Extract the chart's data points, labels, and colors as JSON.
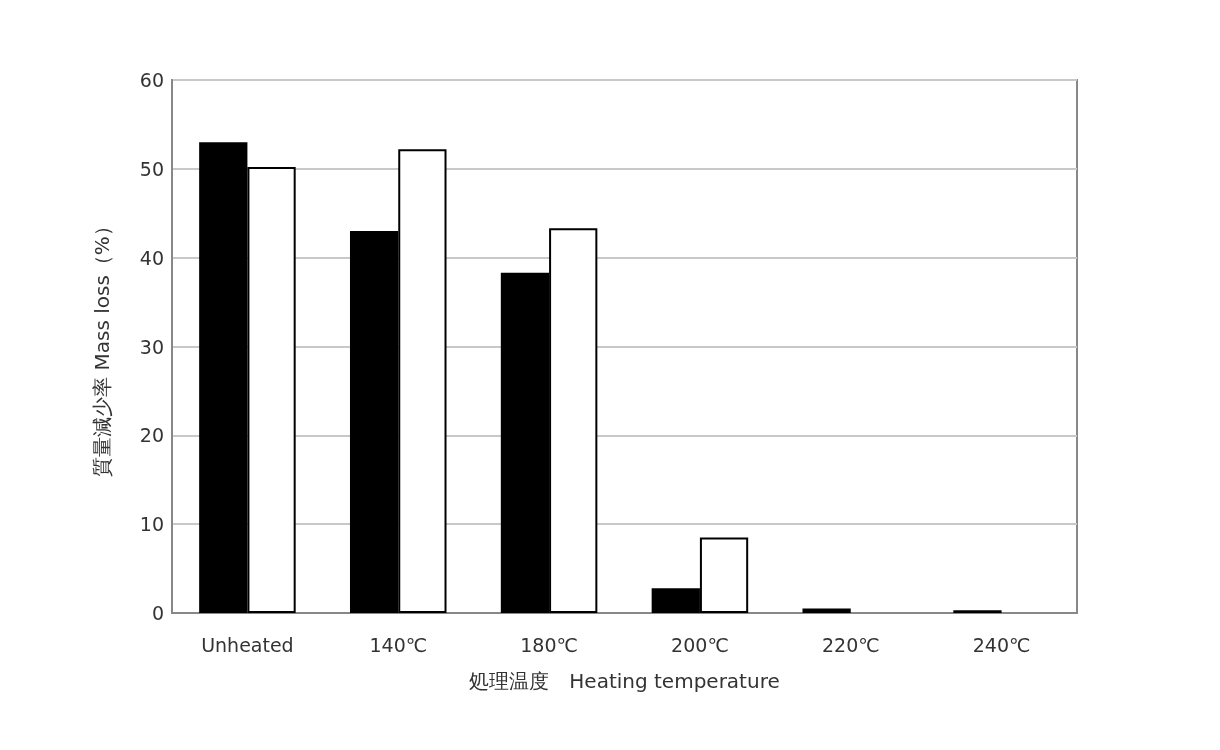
{
  "chart_data": {
    "type": "bar",
    "xlabel": "処理温度　Heating temperature",
    "ylabel": "質量減少率 Mass loss（%）",
    "categories": [
      "Unheated",
      "140℃",
      "180℃",
      "200℃",
      "220℃",
      "240℃"
    ],
    "series": [
      {
        "color": "#000000",
        "values": [
          53,
          43,
          38.3,
          2.8,
          0.5,
          0.3
        ]
      },
      {
        "color": "#ffffff",
        "values": [
          50.2,
          52.2,
          43.3,
          8.5,
          null,
          null
        ]
      }
    ],
    "ylim": [
      0,
      60
    ],
    "yticks": [
      0,
      10,
      20,
      30,
      40,
      50,
      60
    ],
    "grid": "y"
  }
}
